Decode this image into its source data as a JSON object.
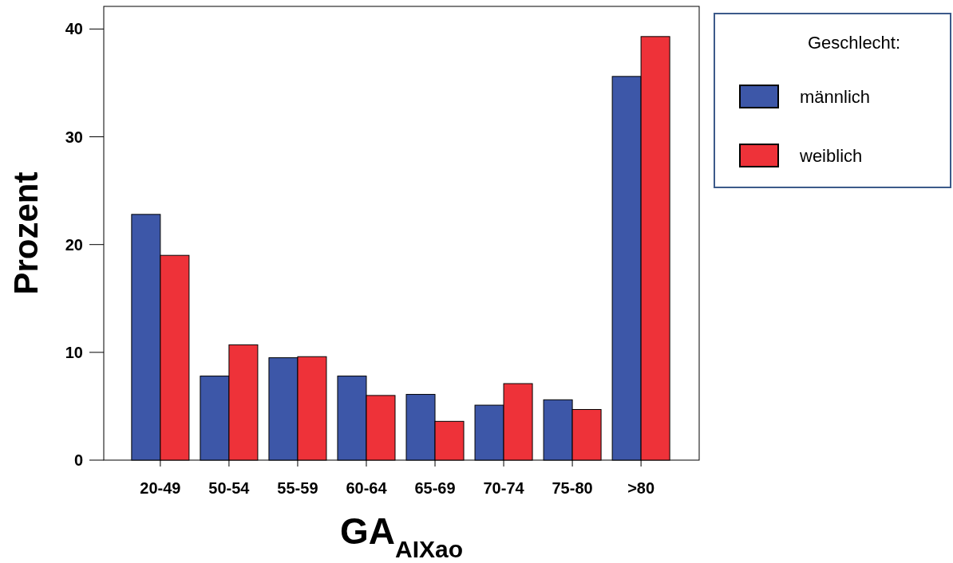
{
  "chart_data": {
    "type": "bar",
    "xlabel": "GA$_{AIXao}$",
    "ylabel": "Prozent",
    "legend_title": "Geschlecht:",
    "categories": [
      "20-49",
      "50-54",
      "55-59",
      "60-64",
      "65-69",
      "70-74",
      "75-80",
      ">80"
    ],
    "series": [
      {
        "name": "männlich",
        "color": "#3d57a8",
        "values": [
          22.8,
          7.8,
          9.5,
          7.8,
          6.1,
          5.1,
          5.6,
          35.6
        ]
      },
      {
        "name": "weiblich",
        "color": "#ee3239",
        "values": [
          19.0,
          10.7,
          9.6,
          6.0,
          3.6,
          7.1,
          4.7,
          39.3
        ]
      }
    ],
    "ylim": [
      0,
      42.1
    ],
    "yticks": [
      0,
      10,
      20,
      30,
      40
    ],
    "grid": false,
    "legend": "right"
  }
}
